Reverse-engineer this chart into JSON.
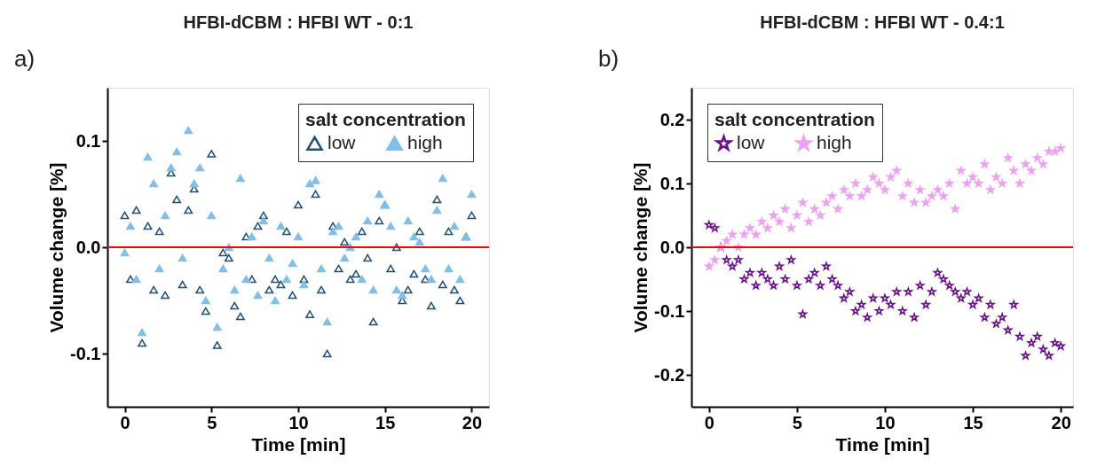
{
  "chart_data": [
    {
      "type": "scatter",
      "title": "HFBI-dCBM : HFBI WT - 0:1",
      "annotations": [
        "a)"
      ],
      "xlabel": "Time [min]",
      "ylabel": "Volume change [%]",
      "legend_title": "salt concentration",
      "legend": "top right",
      "grid": false,
      "xlim": [
        -1,
        21
      ],
      "xticks": [
        0,
        5,
        10,
        15,
        20
      ],
      "ylim": [
        -0.15,
        0.15
      ],
      "yticks": [
        -0.1,
        {
          "value": 0,
          "label": "0.0"
        },
        0.1
      ],
      "ref_lines": [
        {
          "axis": "y",
          "value": 0,
          "color": "#ff0000"
        }
      ],
      "x": [
        0,
        0.33,
        0.67,
        1,
        1.33,
        1.67,
        2,
        2.33,
        2.67,
        3,
        3.33,
        3.67,
        4,
        4.33,
        4.67,
        5,
        5.33,
        5.67,
        6,
        6.33,
        6.67,
        7,
        7.33,
        7.67,
        8,
        8.33,
        8.67,
        9,
        9.33,
        9.67,
        10,
        10.33,
        10.67,
        11,
        11.33,
        11.67,
        12,
        12.33,
        12.67,
        13,
        13.33,
        13.67,
        14,
        14.33,
        14.67,
        15,
        15.33,
        15.67,
        16,
        16.33,
        16.67,
        17,
        17.33,
        17.67,
        18,
        18.33,
        18.67,
        19,
        19.33,
        19.67,
        20
      ],
      "series": [
        {
          "name": "low",
          "color": "#1f4e79",
          "marker": "triangle",
          "values": [
            0.03,
            -0.03,
            0.035,
            -0.09,
            0.02,
            -0.04,
            0.015,
            -0.045,
            0.07,
            0.045,
            -0.035,
            0.035,
            0.055,
            -0.04,
            -0.06,
            0.088,
            -0.092,
            -0.005,
            -0.01,
            -0.055,
            -0.065,
            0.01,
            -0.03,
            0.02,
            0.03,
            -0.04,
            -0.03,
            -0.035,
            0.015,
            -0.045,
            0.04,
            -0.03,
            -0.063,
            0.05,
            -0.04,
            -0.1,
            0.02,
            -0.02,
            0.005,
            -0.03,
            -0.025,
            0.015,
            -0.01,
            -0.07,
            0.025,
            0.04,
            -0.02,
            0.0,
            -0.05,
            -0.04,
            -0.025,
            0.015,
            -0.03,
            -0.055,
            0.045,
            -0.035,
            0.015,
            -0.04,
            -0.05,
            0.01,
            0.03
          ]
        },
        {
          "name": "high",
          "color": "#7fbfea",
          "marker": "triangle",
          "values": [
            -0.005,
            0.02,
            -0.03,
            -0.08,
            0.085,
            0.06,
            -0.02,
            0.03,
            0.075,
            0.09,
            -0.01,
            0.11,
            0.06,
            0.075,
            -0.05,
            0.03,
            -0.075,
            -0.02,
            0.0,
            -0.04,
            0.065,
            -0.03,
            0.01,
            -0.045,
            0.025,
            -0.01,
            -0.05,
            0.02,
            -0.03,
            -0.015,
            0.01,
            -0.035,
            0.06,
            0.063,
            -0.02,
            -0.07,
            0.015,
            0.02,
            -0.01,
            0.0,
            0.01,
            -0.03,
            0.025,
            -0.04,
            0.05,
            0.04,
            0.02,
            -0.04,
            -0.045,
            0.025,
            0.01,
            0.005,
            -0.02,
            -0.03,
            0.035,
            0.065,
            -0.02,
            0.02,
            -0.03,
            0.01,
            0.05
          ]
        }
      ]
    },
    {
      "type": "scatter",
      "title": "HFBI-dCBM : HFBI WT - 0.4:1",
      "annotations": [
        "b)"
      ],
      "xlabel": "Time [min]",
      "ylabel": "Volume change [%]",
      "legend_title": "salt concentration",
      "legend": "top left",
      "grid": false,
      "xlim": [
        -1,
        20.7
      ],
      "xticks": [
        0,
        5,
        10,
        15,
        20
      ],
      "ylim": [
        -0.25,
        0.25
      ],
      "yticks": [
        -0.2,
        -0.1,
        {
          "value": 0,
          "label": "0.0"
        },
        0.1,
        0.2
      ],
      "ref_lines": [
        {
          "axis": "y",
          "value": 0,
          "color": "#ff0000"
        }
      ],
      "x": [
        0,
        0.33,
        0.67,
        1,
        1.33,
        1.67,
        2,
        2.33,
        2.67,
        3,
        3.33,
        3.67,
        4,
        4.33,
        4.67,
        5,
        5.33,
        5.67,
        6,
        6.33,
        6.67,
        7,
        7.33,
        7.67,
        8,
        8.33,
        8.67,
        9,
        9.33,
        9.67,
        10,
        10.33,
        10.67,
        11,
        11.33,
        11.67,
        12,
        12.33,
        12.67,
        13,
        13.33,
        13.67,
        14,
        14.33,
        14.67,
        15,
        15.33,
        15.67,
        16,
        16.33,
        16.67,
        17,
        17.33,
        17.67,
        18,
        18.33,
        18.67,
        19,
        19.33,
        19.67,
        20
      ],
      "series": [
        {
          "name": "low",
          "color": "#6a0f8e",
          "marker": "star",
          "values": [
            0.035,
            0.03,
            0.0,
            -0.02,
            -0.03,
            -0.02,
            -0.05,
            -0.04,
            -0.06,
            -0.04,
            -0.05,
            -0.06,
            -0.03,
            -0.05,
            -0.02,
            -0.06,
            -0.105,
            -0.05,
            -0.04,
            -0.06,
            -0.03,
            -0.05,
            -0.06,
            -0.08,
            -0.07,
            -0.1,
            -0.09,
            -0.11,
            -0.08,
            -0.1,
            -0.08,
            -0.09,
            -0.07,
            -0.1,
            -0.07,
            -0.11,
            -0.06,
            -0.09,
            -0.07,
            -0.04,
            -0.05,
            -0.06,
            -0.07,
            -0.08,
            -0.07,
            -0.09,
            -0.08,
            -0.11,
            -0.09,
            -0.12,
            -0.11,
            -0.13,
            -0.09,
            -0.14,
            -0.17,
            -0.15,
            -0.14,
            -0.16,
            -0.17,
            -0.15,
            -0.155
          ]
        },
        {
          "name": "high",
          "color": "#eea0f5",
          "marker": "star",
          "values": [
            -0.03,
            -0.02,
            0.0,
            0.01,
            0.02,
            0.0,
            0.02,
            0.03,
            0.02,
            0.04,
            0.03,
            0.05,
            0.04,
            0.06,
            0.03,
            0.05,
            0.07,
            0.04,
            0.06,
            0.05,
            0.07,
            0.08,
            0.06,
            0.09,
            0.08,
            0.1,
            0.08,
            0.09,
            0.11,
            0.1,
            0.09,
            0.11,
            0.12,
            0.08,
            0.1,
            0.07,
            0.09,
            0.07,
            0.08,
            0.09,
            0.08,
            0.1,
            0.06,
            0.12,
            0.1,
            0.11,
            0.1,
            0.13,
            0.09,
            0.11,
            0.1,
            0.14,
            0.12,
            0.1,
            0.13,
            0.12,
            0.14,
            0.13,
            0.15,
            0.15,
            0.155
          ]
        }
      ]
    }
  ]
}
